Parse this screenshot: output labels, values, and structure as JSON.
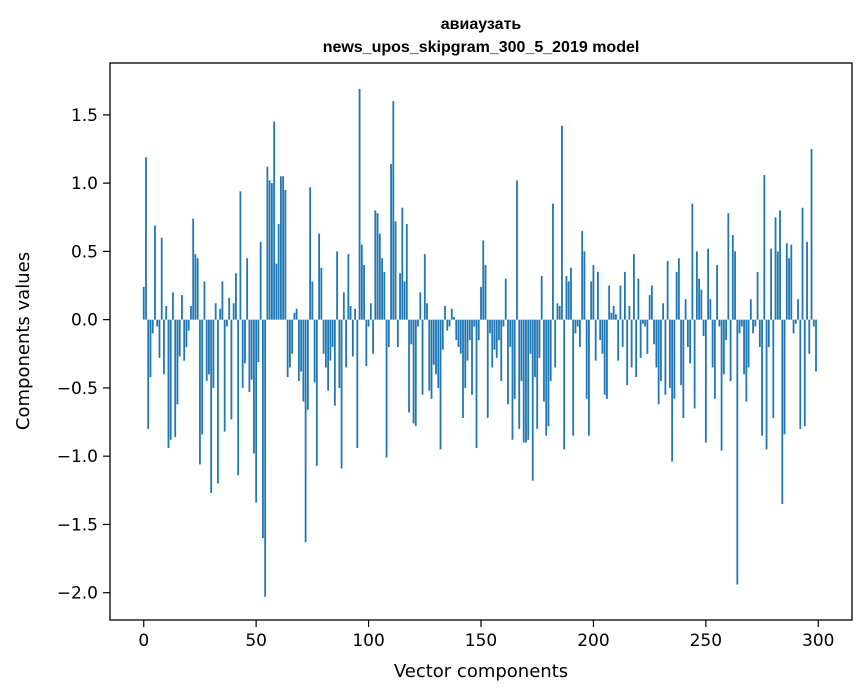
{
  "chart_data": {
    "type": "bar",
    "title": "авиаузать",
    "subtitle": "news_upos_skipgram_300_5_2019 model",
    "xlabel": "Vector components",
    "ylabel": "Components values",
    "xlim": [
      -15,
      315
    ],
    "ylim": [
      -2.2,
      1.88
    ],
    "x_ticks": [
      0,
      50,
      100,
      150,
      200,
      250,
      300
    ],
    "y_ticks": [
      -2.0,
      -1.5,
      -1.0,
      -0.5,
      0.0,
      0.5,
      1.0,
      1.5
    ],
    "x_tick_labels": [
      "0",
      "50",
      "100",
      "150",
      "200",
      "250",
      "300"
    ],
    "y_tick_labels": [
      "−2.0",
      "−1.5",
      "−1.0",
      "−0.5",
      "0.0",
      "0.5",
      "1.0",
      "1.5"
    ],
    "bar_color": "#1f77b4",
    "x": "indices 0..299 (one bar per vector component)",
    "values": [
      0.24,
      1.19,
      -0.8,
      -0.42,
      -0.1,
      0.69,
      -0.05,
      -0.28,
      0.6,
      -0.4,
      0.1,
      -0.94,
      -0.88,
      0.2,
      -0.86,
      -0.62,
      -0.27,
      0.18,
      -0.3,
      -0.2,
      -0.08,
      0.1,
      0.74,
      0.48,
      0.45,
      -1.06,
      -0.84,
      0.28,
      -0.45,
      -0.4,
      -1.27,
      -0.5,
      0.12,
      -1.2,
      0.08,
      0.28,
      -0.82,
      -0.05,
      0.16,
      -0.73,
      0.12,
      0.34,
      -1.14,
      0.94,
      -0.5,
      -0.32,
      0.45,
      -0.53,
      -0.44,
      -0.98,
      -1.34,
      -0.31,
      0.57,
      -1.6,
      -2.03,
      1.12,
      1.02,
      1.0,
      1.45,
      0.41,
      0.7,
      1.05,
      1.05,
      0.95,
      -0.42,
      -0.35,
      -0.25,
      0.05,
      0.08,
      -0.45,
      -0.38,
      -0.6,
      -1.63,
      -0.66,
      0.97,
      0.28,
      -0.46,
      -1.07,
      0.63,
      0.38,
      -0.25,
      -0.35,
      -0.52,
      -0.3,
      -0.2,
      -0.63,
      0.5,
      -0.5,
      -1.09,
      0.2,
      -0.35,
      0.48,
      0.1,
      -0.27,
      0.08,
      -0.94,
      1.69,
      0.55,
      0.4,
      -0.34,
      -0.05,
      0.12,
      -0.25,
      0.8,
      0.78,
      0.63,
      0.45,
      0.35,
      -1.01,
      -0.2,
      1.14,
      1.6,
      0.72,
      -0.2,
      0.34,
      0.82,
      0.28,
      0.7,
      -0.68,
      -0.18,
      -0.76,
      -0.78,
      -0.05,
      0.2,
      -0.55,
      0.48,
      0.12,
      -0.52,
      -0.58,
      -0.33,
      -0.4,
      -0.5,
      -0.95,
      -0.22,
      0.1,
      -0.08,
      -0.05,
      0.08,
      0.02,
      -0.15,
      -0.2,
      -0.25,
      -0.72,
      -0.5,
      -0.3,
      -0.15,
      -0.55,
      -0.05,
      -0.94,
      -0.15,
      0.24,
      0.58,
      0.4,
      -0.72,
      -0.1,
      -0.35,
      -0.22,
      -0.28,
      -0.15,
      -0.45,
      -0.05,
      0.3,
      -0.62,
      -0.2,
      -0.88,
      -0.58,
      1.02,
      -0.8,
      -0.45,
      -0.9,
      -0.9,
      -0.88,
      -0.25,
      -1.18,
      -0.42,
      -0.8,
      -0.28,
      0.32,
      -0.6,
      -0.85,
      -0.78,
      -0.45,
      0.85,
      -0.35,
      0.12,
      0.1,
      1.42,
      -0.95,
      0.32,
      0.28,
      0.38,
      -0.85,
      -0.1,
      -0.05,
      -0.2,
      0.65,
      0.5,
      -0.58,
      -0.85,
      0.28,
      0.4,
      -0.3,
      0.35,
      -0.15,
      -0.25,
      -0.55,
      -0.58,
      0.25,
      0.05,
      0.1,
      0.04,
      -0.3,
      0.25,
      -0.2,
      0.35,
      -0.48,
      0.1,
      -0.35,
      0.48,
      -0.42,
      0.3,
      -0.28,
      -0.03,
      -0.05,
      -0.25,
      0.18,
      0.25,
      -0.18,
      -0.35,
      -0.62,
      -0.45,
      0.12,
      -0.55,
      0.43,
      -0.5,
      -1.04,
      -0.58,
      0.35,
      0.45,
      -0.48,
      -0.72,
      0.15,
      -0.2,
      -0.32,
      0.85,
      -0.65,
      0.5,
      0.3,
      0.22,
      -0.12,
      -0.9,
      0.52,
      0.15,
      -0.35,
      -0.58,
      0.4,
      -0.05,
      -0.96,
      -0.4,
      -0.15,
      0.78,
      -0.45,
      0.62,
      0.5,
      -1.94,
      -0.1,
      -0.05,
      -0.4,
      -0.6,
      -0.35,
      0.15,
      -0.1,
      -0.05,
      0.35,
      -0.2,
      -0.85,
      1.06,
      -0.95,
      -0.2,
      0.52,
      -0.72,
      0.75,
      0.5,
      0.8,
      -1.35,
      -0.84,
      0.56,
      0.45,
      0.55,
      -0.1,
      -0.03,
      0.15,
      -0.8,
      0.82,
      -0.78,
      0.57,
      -0.25,
      1.25,
      -0.05,
      -0.38
    ]
  }
}
